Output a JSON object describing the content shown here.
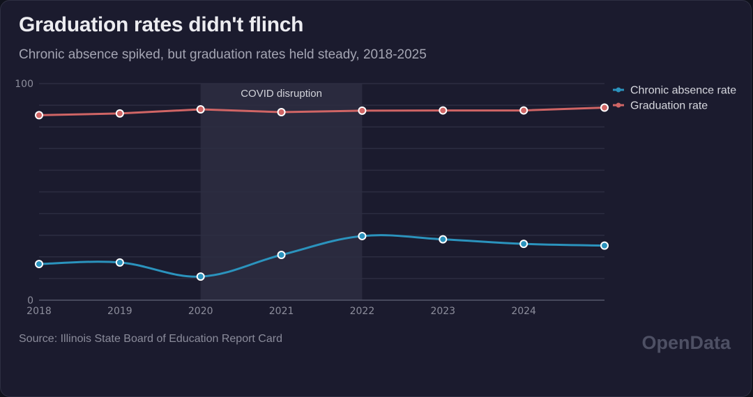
{
  "header": {
    "title": "Graduation rates didn't flinch",
    "subtitle": "Chronic absence spiked, but graduation rates held steady, 2018-2025"
  },
  "footer": {
    "source": "Source: Illinois State Board of Education Report Card",
    "brand": "OpenData"
  },
  "chart_data": {
    "type": "line",
    "title": "Graduation rates didn't flinch",
    "subtitle": "Chronic absence spiked, but graduation rates held steady, 2018-2025",
    "xlabel": "",
    "ylabel": "",
    "x": [
      2018,
      2019,
      2020,
      2021,
      2022,
      2023,
      2024,
      2025
    ],
    "x_tick_labels": [
      "2018",
      "2019",
      "2020",
      "2021",
      "2022",
      "2023",
      "2024"
    ],
    "y_tick_labels": [
      "0",
      "100"
    ],
    "ylim": [
      0,
      100
    ],
    "xlim": [
      2018,
      2025
    ],
    "grid": true,
    "grid_step": 10,
    "legend_position": "top-right",
    "annotations": [
      {
        "type": "band",
        "x_start": 2020,
        "x_end": 2022,
        "label": "COVID disruption"
      }
    ],
    "series": [
      {
        "name": "Chronic absence rate",
        "color": "#2b93bd",
        "smooth": true,
        "values": [
          16.7,
          17.4,
          10.9,
          20.9,
          29.6,
          28.1,
          26.0,
          25.2
        ]
      },
      {
        "name": "Graduation rate",
        "color": "#d06565",
        "smooth": false,
        "values": [
          85.4,
          86.2,
          88.1,
          86.8,
          87.5,
          87.6,
          87.6,
          88.9
        ]
      }
    ]
  },
  "colors": {
    "background": "#1b1b2e",
    "band": "#2a2a3e",
    "grid": "#2c2d41",
    "axis": "#55576a",
    "marker_ring": "#ffffff"
  }
}
